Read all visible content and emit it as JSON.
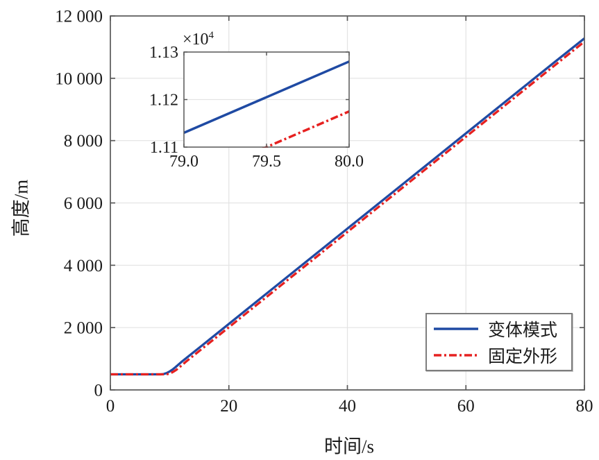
{
  "chart_data": {
    "type": "line",
    "main": {
      "xlabel": "时间/s",
      "ylabel": "高度/m",
      "xlim": [
        0,
        80
      ],
      "ylim": [
        0,
        12000
      ],
      "grid": true,
      "xticks": {
        "values": [
          0,
          20,
          40,
          60,
          80
        ],
        "labels": [
          "0",
          "20",
          "40",
          "60",
          "80"
        ]
      },
      "yticks": {
        "values": [
          0,
          2000,
          4000,
          6000,
          8000,
          10000,
          12000
        ],
        "labels": [
          "0",
          "2 000",
          "4 000",
          "6 000",
          "8 000",
          "10 000",
          "12 000"
        ]
      },
      "series": [
        {
          "name": "变体模式",
          "color": "#1f4aa3",
          "style": "solid",
          "points": [
            [
              0,
              500
            ],
            [
              4,
              500
            ],
            [
              8.5,
              500
            ],
            [
              9,
              510
            ],
            [
              9.5,
              540
            ],
            [
              10,
              592
            ],
            [
              10.5,
              655
            ],
            [
              11,
              732
            ],
            [
              11.5,
              815
            ],
            [
              12,
              897
            ],
            [
              15,
              1356
            ],
            [
              20,
              2120
            ],
            [
              30,
              3648
            ],
            [
              40,
              5176
            ],
            [
              50,
              6704
            ],
            [
              60,
              8232
            ],
            [
              70,
              9760
            ],
            [
              75,
              10524
            ],
            [
              79,
              11130
            ],
            [
              80,
              11280
            ]
          ]
        },
        {
          "name": "固定外形",
          "color": "#e62120",
          "style": "dashdot",
          "points": [
            [
              0,
              500
            ],
            [
              4,
              500
            ],
            [
              9.2,
              500
            ],
            [
              9.7,
              510
            ],
            [
              10.2,
              540
            ],
            [
              10.7,
              592
            ],
            [
              11.2,
              655
            ],
            [
              11.7,
              732
            ],
            [
              12.2,
              815
            ],
            [
              12.7,
              897
            ],
            [
              15,
              1248
            ],
            [
              20,
              2012
            ],
            [
              30,
              3540
            ],
            [
              40,
              5068
            ],
            [
              50,
              6596
            ],
            [
              60,
              8124
            ],
            [
              70,
              9652
            ],
            [
              75,
              10416
            ],
            [
              79.5,
              11100
            ],
            [
              80,
              11175
            ]
          ]
        }
      ]
    },
    "inset": {
      "xlim": [
        79,
        80
      ],
      "ylim": [
        11100,
        11300
      ],
      "grid": true,
      "multiplier_base": "×10",
      "multiplier_exp": "4",
      "xticks": {
        "values": [
          79,
          79.5,
          80
        ],
        "labels": [
          "79.0",
          "79.5",
          "80.0"
        ]
      },
      "yticks": {
        "values": [
          11100,
          11200,
          11300
        ],
        "labels": [
          "1.11",
          "1.12",
          "1.13"
        ]
      },
      "series": [
        {
          "name": "变体模式",
          "color": "#1f4aa3",
          "style": "solid",
          "points": [
            [
              79,
              11130
            ],
            [
              80,
              11280
            ]
          ]
        },
        {
          "name": "固定外形",
          "color": "#e62120",
          "style": "dashdot",
          "points": [
            [
              79.38,
              11082
            ],
            [
              79.5,
              11100
            ],
            [
              80,
              11175
            ]
          ]
        }
      ]
    },
    "legend": {
      "position": "bottom-right",
      "entries": [
        {
          "label": "变体模式",
          "color": "#1f4aa3",
          "style": "solid"
        },
        {
          "label": "固定外形",
          "color": "#e62120",
          "style": "dashdot"
        }
      ]
    },
    "colors": {
      "grid": "#e3e3e3",
      "axis": "#595959",
      "text": "#1a1a1a",
      "background": "#ffffff"
    }
  }
}
